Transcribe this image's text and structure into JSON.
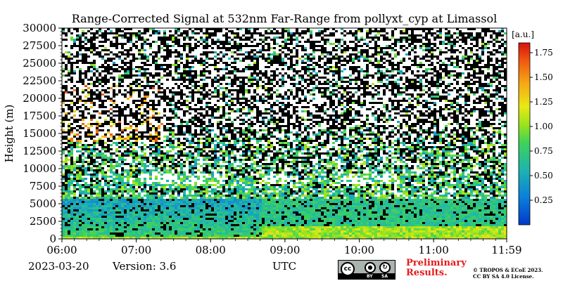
{
  "chart_data": {
    "type": "heatmap",
    "title": "Range-Corrected Signal at 532nm Far-Range from pollyxt_cyp at Limassol",
    "xlabel": "UTC",
    "ylabel": "Height (m)",
    "x_ticks": [
      "06:00",
      "07:00",
      "08:00",
      "09:00",
      "10:00",
      "11:00",
      "11:59"
    ],
    "x_range": [
      "06:00",
      "11:59"
    ],
    "y_ticks": [
      0,
      2500,
      5000,
      7500,
      10000,
      12500,
      15000,
      17500,
      20000,
      22500,
      25000,
      27500,
      30000
    ],
    "ylim": [
      0,
      30000
    ],
    "colorbar": {
      "unit": "[a.u.]",
      "ticks": [
        0.25,
        0.5,
        0.75,
        1.0,
        1.25,
        1.5,
        1.75
      ],
      "tick_labels": [
        "0.25",
        "0.50",
        "0.75",
        "1.00",
        "1.25",
        "1.50",
        "1.75"
      ],
      "range": [
        0.0,
        1.85
      ],
      "colormap": "jet"
    },
    "features": {
      "near_surface_layer_height_m": 2000,
      "aerosol_layer_top_m": 6000,
      "cloud_layer_m": [
        8000,
        9500
      ]
    }
  },
  "footer": {
    "date": "2023-03-20",
    "version": "Version: 3.6",
    "license_badge": {
      "top": "cc",
      "by": "BY",
      "sa": "SA"
    },
    "preliminary_line1": "Preliminary",
    "preliminary_line2": "Results.",
    "copyright_line1": "© TROPOS & ECoE 2023.",
    "copyright_line2": "CC BY SA 4.0 License."
  },
  "colors": {
    "text": "#000000",
    "preliminary": "#e41a1c",
    "noise_dark": "#000000",
    "noise_light": "#ffffff"
  }
}
